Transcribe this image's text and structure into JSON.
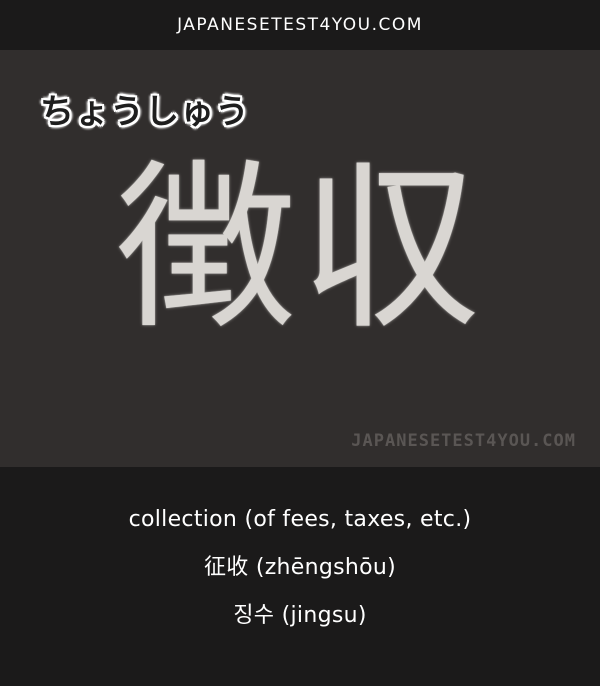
{
  "header": {
    "site_name": "JAPANESETEST4YOU.COM"
  },
  "card": {
    "reading": "ちょうしゅう",
    "kanji": "徴収",
    "watermark": "JAPANESETEST4YOU.COM"
  },
  "meanings": {
    "english": "collection (of fees, taxes, etc.)",
    "chinese": "征收 (zhēngshōu)",
    "korean": "징수 (jingsu)"
  },
  "colors": {
    "page_background": "#1b1a1a",
    "card_background": "#312e2d",
    "text": "#ffffff"
  }
}
